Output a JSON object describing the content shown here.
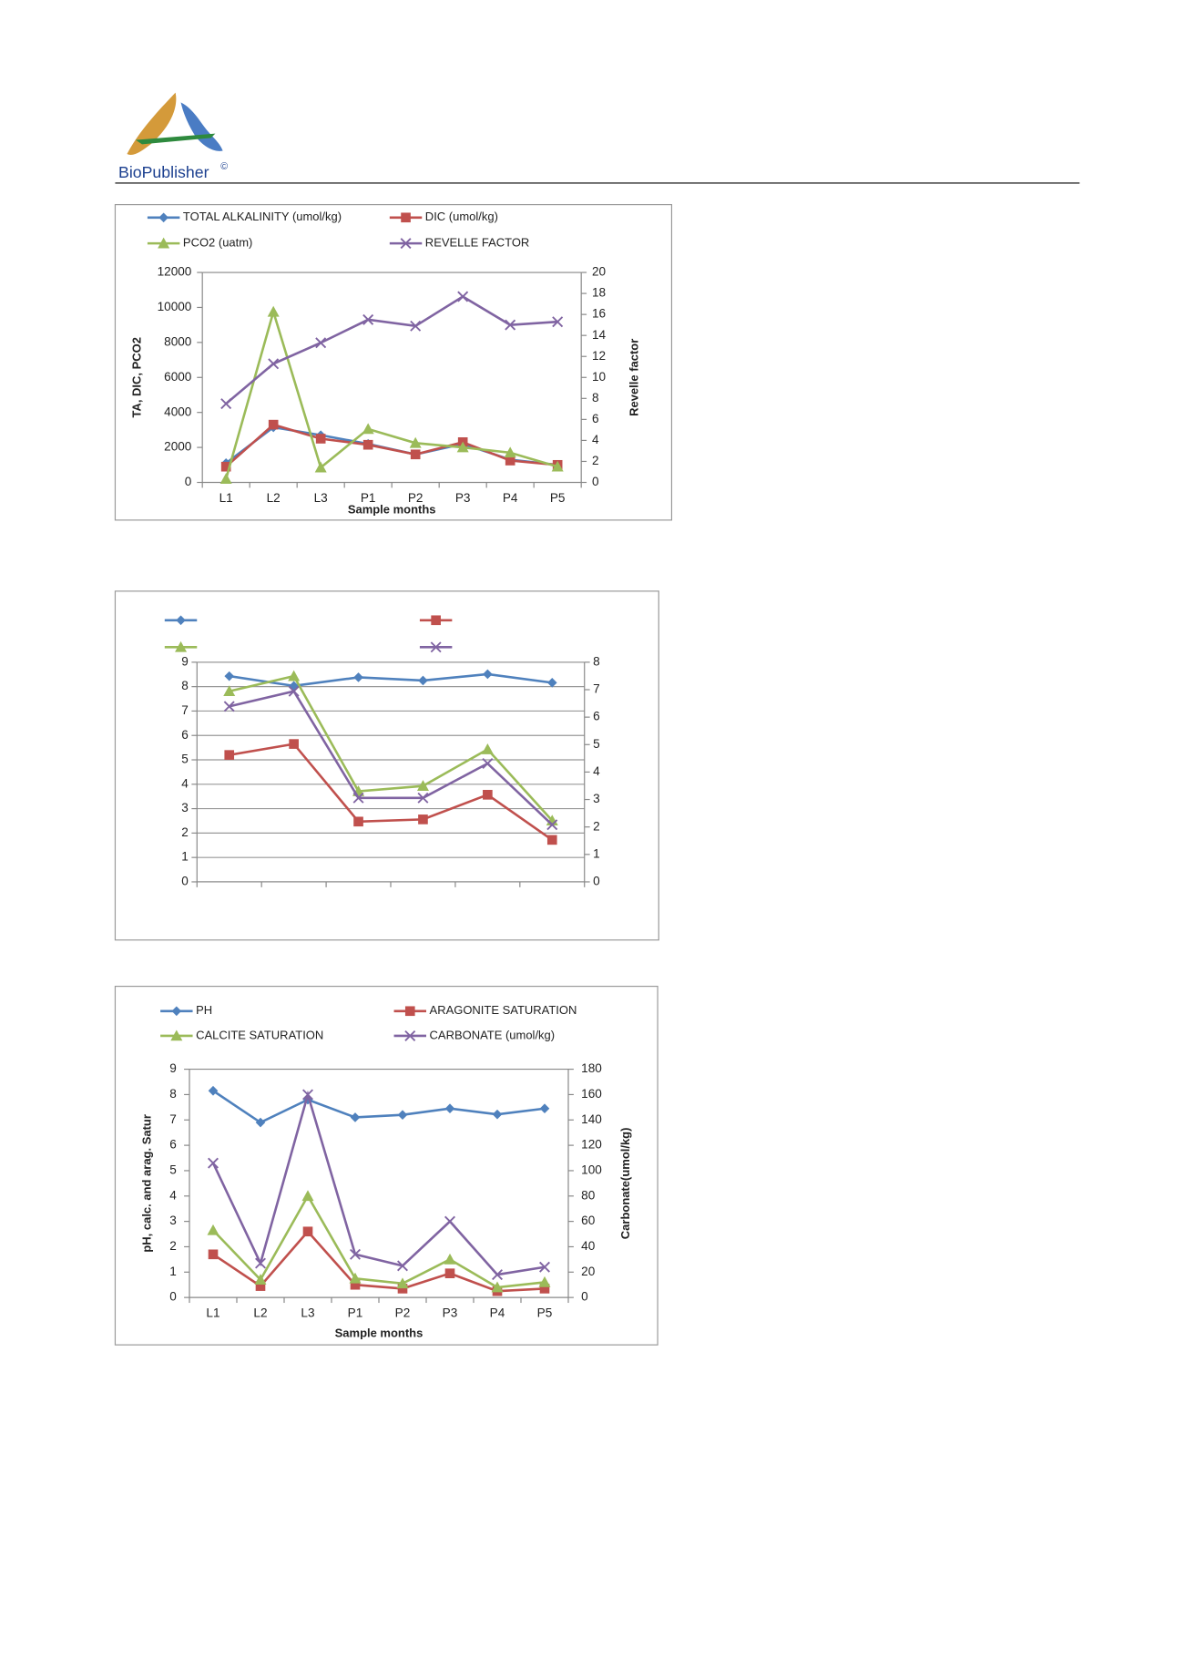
{
  "header": {
    "logo_text": "BioPublisher",
    "copyright": "©"
  },
  "chart_data": [
    {
      "type": "line",
      "ylabel": "TA, DIC, PCO2",
      "y2label": "Revelle factor",
      "xlabel": "Sample months",
      "categories": [
        "L1",
        "L2",
        "L3",
        "P1",
        "P2",
        "P3",
        "P4",
        "P5"
      ],
      "series": [
        {
          "name": "TOTAL ALKALINITY (umol/kg)",
          "color": "#4f81bd",
          "marker": "diamond",
          "values": [
            1100,
            3150,
            2700,
            2200,
            1600,
            2200,
            1300,
            1000
          ]
        },
        {
          "name": "DIC (umol/kg)",
          "color": "#c0504d",
          "marker": "square",
          "values": [
            900,
            3300,
            2500,
            2150,
            1600,
            2300,
            1250,
            1000
          ]
        },
        {
          "name": "PCO2 (uatm)",
          "color": "#9bbb59",
          "marker": "triangle",
          "values": [
            200,
            9750,
            850,
            3050,
            2250,
            2000,
            1700,
            900
          ]
        },
        {
          "name": "REVELLE FACTOR",
          "color": "#8064a2",
          "marker": "x",
          "axis": "y2",
          "values": [
            7.5,
            11.3,
            13.3,
            15.5,
            14.9,
            17.7,
            15,
            15.3
          ]
        }
      ],
      "ylim": [
        0,
        12000
      ],
      "yticks": [
        0,
        2000,
        4000,
        6000,
        8000,
        10000,
        12000
      ],
      "y2lim": [
        0,
        20
      ],
      "y2ticks": [
        0,
        2,
        4,
        6,
        8,
        10,
        12,
        14,
        16,
        18,
        20
      ],
      "grid": false,
      "legend": "top"
    },
    {
      "type": "line",
      "categories": [
        null,
        null,
        null,
        null,
        null,
        null
      ],
      "series": [
        {
          "name": null,
          "color": "#4f81bd",
          "marker": "diamond",
          "values": [
            8.43,
            8.03,
            8.38,
            8.25,
            8.51,
            8.16
          ]
        },
        {
          "name": null,
          "color": "#c0504d",
          "marker": "square",
          "values": [
            5.2,
            5.65,
            2.47,
            2.56,
            3.57,
            1.72
          ]
        },
        {
          "name": null,
          "color": "#9bbb59",
          "marker": "triangle",
          "values": [
            7.81,
            8.43,
            3.71,
            3.93,
            5.43,
            2.51
          ]
        },
        {
          "name": null,
          "color": "#8064a2",
          "marker": "x",
          "values": [
            7.19,
            7.81,
            3.44,
            3.44,
            4.85,
            2.34
          ]
        }
      ],
      "ylim": [
        0,
        9
      ],
      "yticks": [
        0,
        1,
        2,
        3,
        4,
        5,
        6,
        7,
        8,
        9
      ],
      "y2lim": [
        0,
        8
      ],
      "y2ticks": [
        0,
        1,
        2,
        3,
        4,
        5,
        6,
        7,
        8
      ],
      "grid": true,
      "legend": "top"
    },
    {
      "type": "line",
      "ylabel": "pH, calc. and arag. Satur",
      "y2label": "Carbonate(umol/kg)",
      "xlabel": "Sample months",
      "categories": [
        "L1",
        "L2",
        "L3",
        "P1",
        "P2",
        "P3",
        "P4",
        "P5"
      ],
      "series": [
        {
          "name": "PH",
          "color": "#4f81bd",
          "marker": "diamond",
          "values": [
            8.15,
            6.9,
            7.8,
            7.1,
            7.2,
            7.45,
            7.22,
            7.45
          ]
        },
        {
          "name": "ARAGONITE SATURATION",
          "color": "#c0504d",
          "marker": "square",
          "values": [
            1.7,
            0.45,
            2.6,
            0.5,
            0.35,
            0.95,
            0.25,
            0.35
          ]
        },
        {
          "name": "CALCITE SATURATION",
          "color": "#9bbb59",
          "marker": "triangle",
          "values": [
            2.65,
            0.7,
            4.0,
            0.75,
            0.55,
            1.5,
            0.4,
            0.6
          ]
        },
        {
          "name": "CARBONATE (umol/kg)",
          "color": "#8064a2",
          "marker": "x",
          "axis": "y2",
          "values": [
            106,
            27,
            160,
            34,
            25,
            60,
            18,
            24
          ]
        }
      ],
      "ylim": [
        0,
        9
      ],
      "yticks": [
        0,
        1,
        2,
        3,
        4,
        5,
        6,
        7,
        8,
        9
      ],
      "y2lim": [
        0,
        180
      ],
      "y2ticks": [
        0,
        20,
        40,
        60,
        80,
        100,
        120,
        140,
        160,
        180
      ],
      "grid": false,
      "legend": "top"
    }
  ]
}
